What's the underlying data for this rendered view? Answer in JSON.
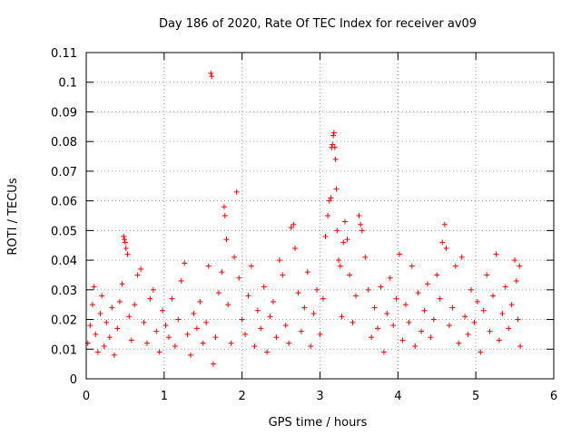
{
  "chart_data": {
    "type": "scatter",
    "title": "Day 186 of 2020, Rate Of TEC Index for receiver av09",
    "xlabel": "GPS time / hours",
    "ylabel": "ROTI / TECUs",
    "xlim": [
      0,
      6
    ],
    "ylim": [
      0,
      0.11
    ],
    "xticks": [
      0,
      1,
      2,
      3,
      4,
      5,
      6
    ],
    "xtick_labels": [
      "0",
      "1",
      "2",
      "3",
      "4",
      "5",
      "6"
    ],
    "yticks": [
      0,
      0.01,
      0.02,
      0.03,
      0.04,
      0.05,
      0.06,
      0.07,
      0.08,
      0.09,
      0.1,
      0.11
    ],
    "ytick_labels": [
      "0",
      "0.01",
      "0.02",
      "0.03",
      "0.04",
      "0.05",
      "0.06",
      "0.07",
      "0.08",
      "0.09",
      "0.1",
      "0.11"
    ],
    "grid": true,
    "marker": "+",
    "color": "#ff0000",
    "series": [
      {
        "name": "ROTI",
        "points": [
          [
            0.02,
            0.012
          ],
          [
            0.05,
            0.018
          ],
          [
            0.08,
            0.025
          ],
          [
            0.1,
            0.031
          ],
          [
            0.12,
            0.015
          ],
          [
            0.15,
            0.009
          ],
          [
            0.18,
            0.022
          ],
          [
            0.2,
            0.028
          ],
          [
            0.23,
            0.011
          ],
          [
            0.26,
            0.019
          ],
          [
            0.3,
            0.014
          ],
          [
            0.33,
            0.024
          ],
          [
            0.36,
            0.008
          ],
          [
            0.4,
            0.017
          ],
          [
            0.43,
            0.026
          ],
          [
            0.46,
            0.032
          ],
          [
            0.48,
            0.048
          ],
          [
            0.49,
            0.047
          ],
          [
            0.5,
            0.046
          ],
          [
            0.51,
            0.044
          ],
          [
            0.53,
            0.042
          ],
          [
            0.55,
            0.021
          ],
          [
            0.58,
            0.013
          ],
          [
            0.62,
            0.025
          ],
          [
            0.66,
            0.035
          ],
          [
            0.7,
            0.037
          ],
          [
            0.74,
            0.019
          ],
          [
            0.78,
            0.012
          ],
          [
            0.82,
            0.027
          ],
          [
            0.86,
            0.03
          ],
          [
            0.9,
            0.016
          ],
          [
            0.94,
            0.009
          ],
          [
            0.98,
            0.023
          ],
          [
            1.02,
            0.018
          ],
          [
            1.06,
            0.014
          ],
          [
            1.1,
            0.027
          ],
          [
            1.14,
            0.011
          ],
          [
            1.18,
            0.02
          ],
          [
            1.22,
            0.033
          ],
          [
            1.26,
            0.039
          ],
          [
            1.3,
            0.015
          ],
          [
            1.34,
            0.008
          ],
          [
            1.38,
            0.022
          ],
          [
            1.42,
            0.017
          ],
          [
            1.46,
            0.026
          ],
          [
            1.5,
            0.012
          ],
          [
            1.54,
            0.019
          ],
          [
            1.57,
            0.038
          ],
          [
            1.6,
            0.103
          ],
          [
            1.61,
            0.102
          ],
          [
            1.63,
            0.005
          ],
          [
            1.66,
            0.014
          ],
          [
            1.7,
            0.029
          ],
          [
            1.74,
            0.036
          ],
          [
            1.77,
            0.058
          ],
          [
            1.78,
            0.055
          ],
          [
            1.8,
            0.047
          ],
          [
            1.82,
            0.025
          ],
          [
            1.86,
            0.012
          ],
          [
            1.9,
            0.041
          ],
          [
            1.93,
            0.063
          ],
          [
            1.96,
            0.034
          ],
          [
            2.0,
            0.02
          ],
          [
            2.04,
            0.015
          ],
          [
            2.08,
            0.028
          ],
          [
            2.12,
            0.038
          ],
          [
            2.16,
            0.011
          ],
          [
            2.2,
            0.023
          ],
          [
            2.24,
            0.017
          ],
          [
            2.28,
            0.031
          ],
          [
            2.32,
            0.009
          ],
          [
            2.36,
            0.021
          ],
          [
            2.4,
            0.026
          ],
          [
            2.44,
            0.014
          ],
          [
            2.48,
            0.04
          ],
          [
            2.52,
            0.035
          ],
          [
            2.56,
            0.018
          ],
          [
            2.6,
            0.012
          ],
          [
            2.63,
            0.051
          ],
          [
            2.66,
            0.052
          ],
          [
            2.68,
            0.044
          ],
          [
            2.72,
            0.029
          ],
          [
            2.76,
            0.016
          ],
          [
            2.8,
            0.024
          ],
          [
            2.84,
            0.036
          ],
          [
            2.88,
            0.011
          ],
          [
            2.92,
            0.022
          ],
          [
            2.96,
            0.03
          ],
          [
            3.0,
            0.015
          ],
          [
            3.04,
            0.027
          ],
          [
            3.07,
            0.048
          ],
          [
            3.1,
            0.055
          ],
          [
            3.12,
            0.06
          ],
          [
            3.14,
            0.061
          ],
          [
            3.15,
            0.078
          ],
          [
            3.16,
            0.079
          ],
          [
            3.17,
            0.082
          ],
          [
            3.18,
            0.083
          ],
          [
            3.19,
            0.078
          ],
          [
            3.2,
            0.074
          ],
          [
            3.21,
            0.064
          ],
          [
            3.22,
            0.05
          ],
          [
            3.24,
            0.04
          ],
          [
            3.26,
            0.038
          ],
          [
            3.28,
            0.021
          ],
          [
            3.3,
            0.046
          ],
          [
            3.32,
            0.053
          ],
          [
            3.35,
            0.047
          ],
          [
            3.38,
            0.035
          ],
          [
            3.42,
            0.019
          ],
          [
            3.46,
            0.028
          ],
          [
            3.5,
            0.055
          ],
          [
            3.52,
            0.052
          ],
          [
            3.54,
            0.05
          ],
          [
            3.58,
            0.041
          ],
          [
            3.62,
            0.03
          ],
          [
            3.66,
            0.014
          ],
          [
            3.7,
            0.024
          ],
          [
            3.74,
            0.017
          ],
          [
            3.78,
            0.031
          ],
          [
            3.82,
            0.009
          ],
          [
            3.86,
            0.022
          ],
          [
            3.9,
            0.034
          ],
          [
            3.94,
            0.018
          ],
          [
            3.98,
            0.027
          ],
          [
            4.02,
            0.042
          ],
          [
            4.06,
            0.013
          ],
          [
            4.1,
            0.025
          ],
          [
            4.14,
            0.019
          ],
          [
            4.18,
            0.038
          ],
          [
            4.22,
            0.011
          ],
          [
            4.26,
            0.029
          ],
          [
            4.3,
            0.016
          ],
          [
            4.34,
            0.023
          ],
          [
            4.38,
            0.032
          ],
          [
            4.42,
            0.014
          ],
          [
            4.46,
            0.02
          ],
          [
            4.5,
            0.035
          ],
          [
            4.54,
            0.027
          ],
          [
            4.57,
            0.046
          ],
          [
            4.6,
            0.052
          ],
          [
            4.62,
            0.044
          ],
          [
            4.66,
            0.018
          ],
          [
            4.7,
            0.024
          ],
          [
            4.74,
            0.038
          ],
          [
            4.78,
            0.012
          ],
          [
            4.82,
            0.041
          ],
          [
            4.86,
            0.021
          ],
          [
            4.9,
            0.015
          ],
          [
            4.94,
            0.03
          ],
          [
            4.98,
            0.019
          ],
          [
            5.02,
            0.026
          ],
          [
            5.06,
            0.009
          ],
          [
            5.1,
            0.023
          ],
          [
            5.14,
            0.035
          ],
          [
            5.18,
            0.016
          ],
          [
            5.22,
            0.028
          ],
          [
            5.26,
            0.042
          ],
          [
            5.3,
            0.013
          ],
          [
            5.34,
            0.022
          ],
          [
            5.38,
            0.031
          ],
          [
            5.42,
            0.017
          ],
          [
            5.46,
            0.025
          ],
          [
            5.5,
            0.04
          ],
          [
            5.52,
            0.033
          ],
          [
            5.54,
            0.02
          ],
          [
            5.56,
            0.038
          ],
          [
            5.57,
            0.011
          ]
        ]
      }
    ]
  }
}
